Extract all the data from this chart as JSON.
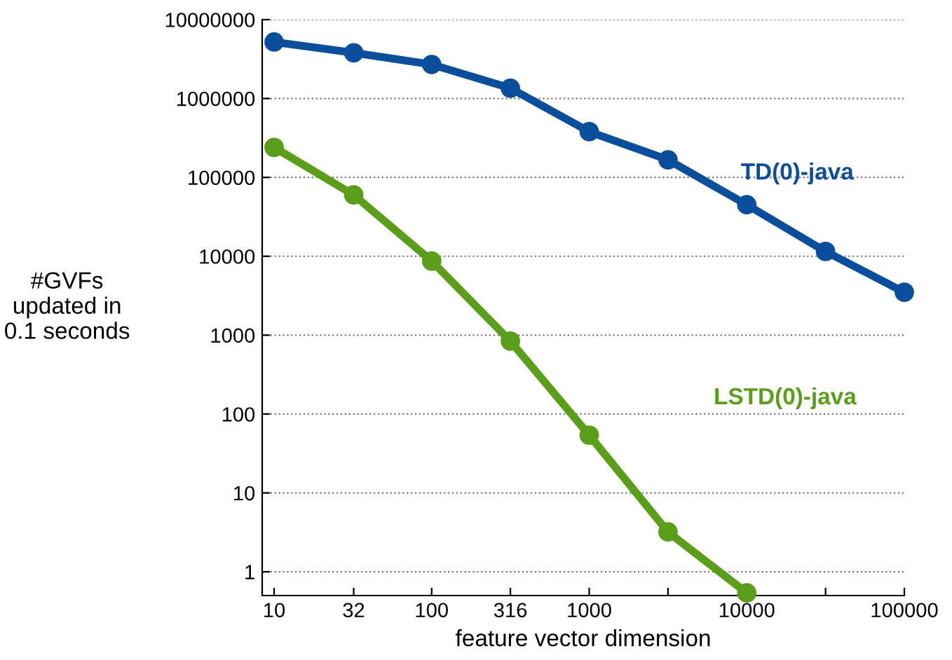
{
  "chart_data": {
    "type": "line",
    "xlabel": "feature vector dimension",
    "ylabel": "#GVFs\nupdated in\n0.1 seconds",
    "log": "xy",
    "grid": "y",
    "marker": "circle",
    "line_style": "solid",
    "x": [
      10,
      32,
      100,
      316,
      1000,
      3162,
      10000,
      31623,
      100000
    ],
    "xlim": [
      8.4,
      100000
    ],
    "xticks": [
      10,
      32,
      100,
      316,
      1000,
      {
        "value": 3162,
        "label": null
      },
      10000,
      {
        "value": 31623,
        "label": null
      },
      100000
    ],
    "ylim": [
      0.5,
      10000000
    ],
    "yticks": [
      1,
      10,
      100,
      1000,
      10000,
      100000,
      1000000,
      10000000
    ],
    "series": [
      {
        "name": "TD(0)-java",
        "color": "#0b4f9c",
        "values": [
          5200000,
          3800000,
          2700000,
          1350000,
          380000,
          167000,
          45000,
          11500,
          3500
        ]
      },
      {
        "name": "LSTD(0)-java",
        "color": "#5a9e1a",
        "values": [
          240000,
          60000,
          8700,
          840,
          54,
          3.2,
          0.54,
          null,
          null
        ]
      }
    ]
  }
}
